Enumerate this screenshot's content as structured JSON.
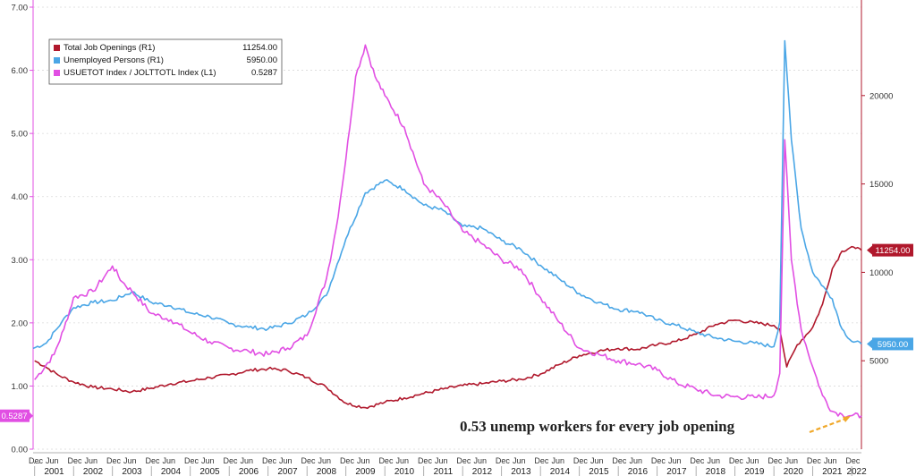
{
  "chart_data": {
    "type": "line",
    "title": "",
    "colors": {
      "openings": "#b0182c",
      "unemployed": "#4aa6e6",
      "ratio": "#e14fe3"
    },
    "legend": [
      {
        "name": "Total Job Openings (R1)",
        "value": "11254.00",
        "color": "#b0182c"
      },
      {
        "name": "Unemployed Persons (R1)",
        "value": "5950.00",
        "color": "#4aa6e6"
      },
      {
        "name": "USUETOT Index / JOLTTOTL Index (L1)",
        "value": "0.5287",
        "color": "#e14fe3"
      }
    ],
    "legend_position": "top-left",
    "left_axis": {
      "ylim": [
        0,
        7
      ],
      "ticks": [
        "0.00",
        "1.00",
        "2.00",
        "3.00",
        "4.00",
        "5.00",
        "6.00",
        "7.00"
      ]
    },
    "right_axis": {
      "ylim": [
        0,
        25000
      ],
      "ticks": [
        "5000",
        "10000",
        "15000",
        "20000"
      ]
    },
    "x_range": [
      2000.96,
      2022.25
    ],
    "x_month_labels": [
      "Dec",
      "Jun"
    ],
    "x_years": [
      "2001",
      "2002",
      "2003",
      "2004",
      "2005",
      "2006",
      "2007",
      "2008",
      "2009",
      "2010",
      "2011",
      "2012",
      "2013",
      "2014",
      "2015",
      "2016",
      "2017",
      "2018",
      "2019",
      "2020",
      "2021",
      "2022"
    ],
    "x_leading_label": "...",
    "series": [
      {
        "name": "Total Job Openings (R1)",
        "axis": "right",
        "points": [
          [
            2001.0,
            5000
          ],
          [
            2001.25,
            4700
          ],
          [
            2001.6,
            4200
          ],
          [
            2002.0,
            3800
          ],
          [
            2002.5,
            3500
          ],
          [
            2003.0,
            3400
          ],
          [
            2003.5,
            3250
          ],
          [
            2004.0,
            3450
          ],
          [
            2004.5,
            3700
          ],
          [
            2005.0,
            3850
          ],
          [
            2005.5,
            4050
          ],
          [
            2006.0,
            4200
          ],
          [
            2006.5,
            4450
          ],
          [
            2007.0,
            4550
          ],
          [
            2007.5,
            4450
          ],
          [
            2008.0,
            4050
          ],
          [
            2008.5,
            3500
          ],
          [
            2009.0,
            2600
          ],
          [
            2009.5,
            2350
          ],
          [
            2010.0,
            2650
          ],
          [
            2010.5,
            2900
          ],
          [
            2011.0,
            3150
          ],
          [
            2011.5,
            3400
          ],
          [
            2012.0,
            3600
          ],
          [
            2012.5,
            3700
          ],
          [
            2013.0,
            3850
          ],
          [
            2013.5,
            3950
          ],
          [
            2014.0,
            4250
          ],
          [
            2014.5,
            4800
          ],
          [
            2015.0,
            5300
          ],
          [
            2015.5,
            5550
          ],
          [
            2016.0,
            5700
          ],
          [
            2016.5,
            5650
          ],
          [
            2017.0,
            5900
          ],
          [
            2017.5,
            6100
          ],
          [
            2018.0,
            6500
          ],
          [
            2018.5,
            7050
          ],
          [
            2019.0,
            7300
          ],
          [
            2019.5,
            7150
          ],
          [
            2020.0,
            7000
          ],
          [
            2020.15,
            6800
          ],
          [
            2020.33,
            4650
          ],
          [
            2020.6,
            5900
          ],
          [
            2021.0,
            6900
          ],
          [
            2021.25,
            8200
          ],
          [
            2021.5,
            10200
          ],
          [
            2021.75,
            11200
          ],
          [
            2022.0,
            11450
          ],
          [
            2022.1,
            11350
          ],
          [
            2022.25,
            11254
          ]
        ]
      },
      {
        "name": "Unemployed Persons (R1)",
        "axis": "right",
        "points": [
          [
            2000.96,
            5700
          ],
          [
            2001.3,
            6000
          ],
          [
            2001.7,
            7200
          ],
          [
            2002.0,
            8000
          ],
          [
            2002.5,
            8300
          ],
          [
            2003.0,
            8400
          ],
          [
            2003.5,
            8900
          ],
          [
            2004.0,
            8300
          ],
          [
            2004.5,
            8100
          ],
          [
            2005.0,
            7700
          ],
          [
            2005.5,
            7500
          ],
          [
            2006.0,
            7100
          ],
          [
            2006.5,
            6900
          ],
          [
            2007.0,
            6800
          ],
          [
            2007.5,
            7100
          ],
          [
            2008.0,
            7600
          ],
          [
            2008.5,
            8700
          ],
          [
            2009.0,
            11900
          ],
          [
            2009.5,
            14500
          ],
          [
            2010.0,
            15200
          ],
          [
            2010.5,
            14700
          ],
          [
            2011.0,
            13800
          ],
          [
            2011.5,
            13500
          ],
          [
            2012.0,
            12600
          ],
          [
            2012.5,
            12500
          ],
          [
            2013.0,
            11800
          ],
          [
            2013.5,
            11300
          ],
          [
            2014.0,
            10400
          ],
          [
            2014.5,
            9600
          ],
          [
            2015.0,
            8800
          ],
          [
            2015.5,
            8300
          ],
          [
            2016.0,
            7900
          ],
          [
            2016.5,
            7800
          ],
          [
            2017.0,
            7300
          ],
          [
            2017.5,
            7000
          ],
          [
            2018.0,
            6600
          ],
          [
            2018.5,
            6300
          ],
          [
            2019.0,
            6100
          ],
          [
            2019.5,
            6000
          ],
          [
            2020.0,
            5800
          ],
          [
            2020.15,
            7200
          ],
          [
            2020.28,
            23100
          ],
          [
            2020.45,
            17500
          ],
          [
            2020.7,
            12500
          ],
          [
            2021.0,
            10000
          ],
          [
            2021.5,
            8500
          ],
          [
            2021.75,
            6800
          ],
          [
            2022.0,
            6100
          ],
          [
            2022.25,
            5950
          ]
        ]
      },
      {
        "name": "USUETOT Index / JOLTTOTL Index (L1)",
        "axis": "left",
        "points": [
          [
            2001.0,
            1.1
          ],
          [
            2001.5,
            1.5
          ],
          [
            2001.75,
            1.9
          ],
          [
            2002.0,
            2.4
          ],
          [
            2002.5,
            2.5
          ],
          [
            2003.0,
            2.9
          ],
          [
            2003.25,
            2.65
          ],
          [
            2003.5,
            2.5
          ],
          [
            2004.0,
            2.15
          ],
          [
            2004.5,
            2.05
          ],
          [
            2005.0,
            1.85
          ],
          [
            2005.5,
            1.7
          ],
          [
            2006.0,
            1.6
          ],
          [
            2006.5,
            1.55
          ],
          [
            2007.0,
            1.5
          ],
          [
            2007.5,
            1.6
          ],
          [
            2008.0,
            1.8
          ],
          [
            2008.5,
            2.7
          ],
          [
            2008.75,
            3.5
          ],
          [
            2009.0,
            4.6
          ],
          [
            2009.25,
            5.9
          ],
          [
            2009.5,
            6.4
          ],
          [
            2009.75,
            5.9
          ],
          [
            2010.0,
            5.6
          ],
          [
            2010.5,
            5.1
          ],
          [
            2011.0,
            4.2
          ],
          [
            2011.5,
            3.9
          ],
          [
            2012.0,
            3.45
          ],
          [
            2012.5,
            3.25
          ],
          [
            2013.0,
            3.0
          ],
          [
            2013.5,
            2.85
          ],
          [
            2014.0,
            2.4
          ],
          [
            2014.5,
            2.0
          ],
          [
            2015.0,
            1.6
          ],
          [
            2015.5,
            1.5
          ],
          [
            2016.0,
            1.4
          ],
          [
            2016.5,
            1.35
          ],
          [
            2017.0,
            1.25
          ],
          [
            2017.5,
            1.05
          ],
          [
            2018.0,
            0.95
          ],
          [
            2018.5,
            0.85
          ],
          [
            2019.0,
            0.83
          ],
          [
            2019.5,
            0.82
          ],
          [
            2020.0,
            0.85
          ],
          [
            2020.15,
            1.2
          ],
          [
            2020.28,
            4.9
          ],
          [
            2020.45,
            3.0
          ],
          [
            2020.7,
            1.9
          ],
          [
            2021.0,
            1.3
          ],
          [
            2021.25,
            0.85
          ],
          [
            2021.5,
            0.6
          ],
          [
            2021.75,
            0.55
          ],
          [
            2022.0,
            0.53
          ],
          [
            2022.25,
            0.5287
          ]
        ]
      }
    ],
    "value_labels": [
      {
        "text": "11254.00",
        "axis": "right",
        "y": 11254,
        "color": "#b0182c"
      },
      {
        "text": "5950.00",
        "axis": "right",
        "y": 5950,
        "color": "#4aa6e6"
      },
      {
        "text": "0.5287",
        "axis": "left",
        "y": 0.5287,
        "color": "#e14fe3"
      }
    ],
    "annotation": {
      "text": "0.53 unemp workers for every job opening",
      "color": "#f0a82a"
    }
  }
}
